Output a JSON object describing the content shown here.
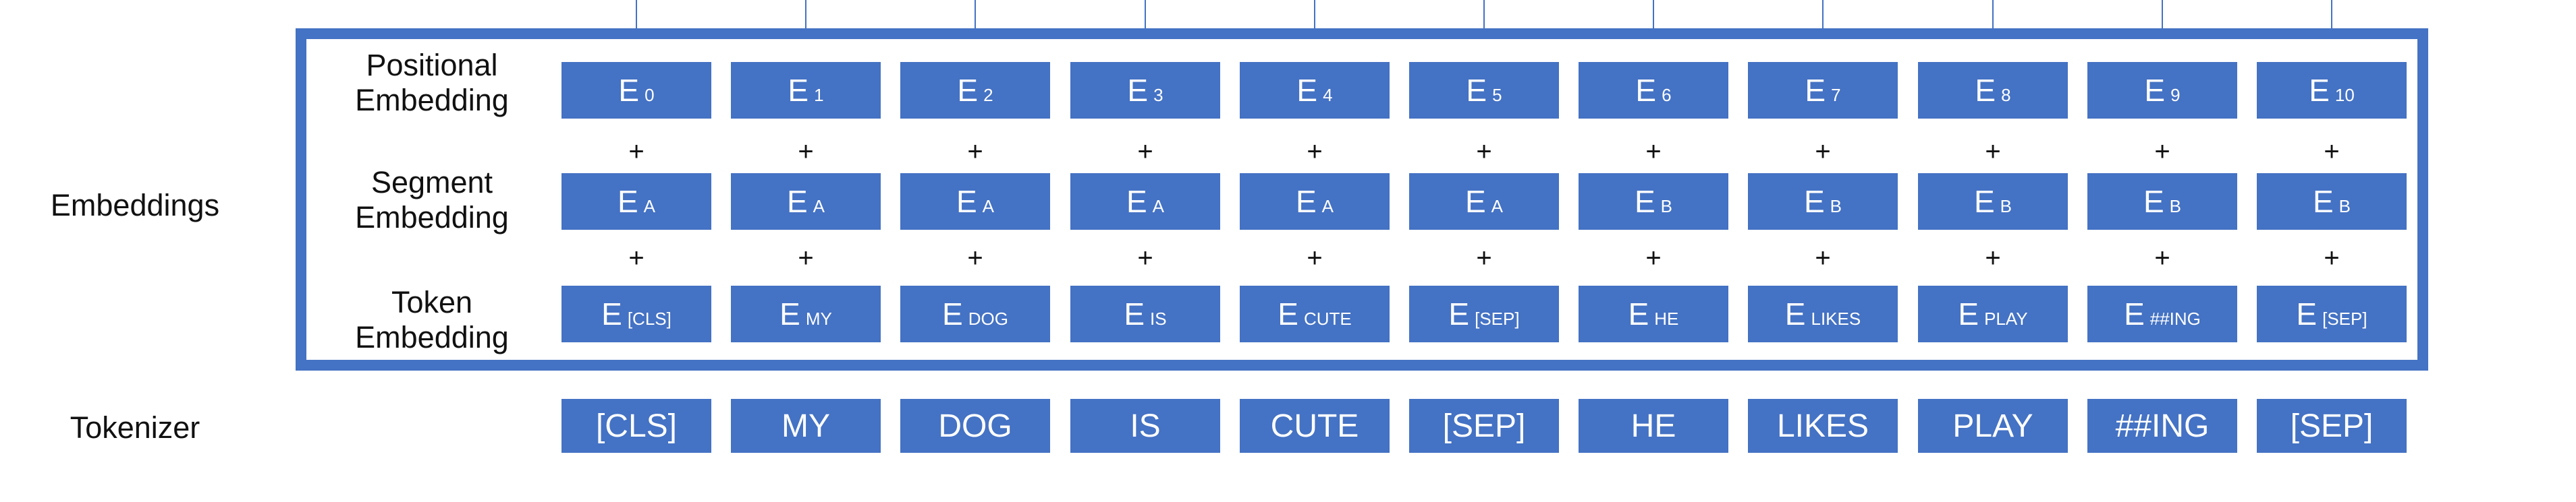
{
  "labels": {
    "embeddings": "Embeddings",
    "tokenizer": "Tokenizer",
    "positional": [
      "Positional",
      "Embedding"
    ],
    "segment": [
      "Segment",
      "Embedding"
    ],
    "token": [
      "Token",
      "Embedding"
    ]
  },
  "plus_symbol": "+",
  "embedding_prefix": "E",
  "positional_subscripts": [
    "0",
    "1",
    "2",
    "3",
    "4",
    "5",
    "6",
    "7",
    "8",
    "9",
    "10"
  ],
  "segment_subscripts": [
    "A",
    "A",
    "A",
    "A",
    "A",
    "A",
    "B",
    "B",
    "B",
    "B",
    "B"
  ],
  "token_subscripts": [
    "[CLS]",
    "MY",
    "DOG",
    "IS",
    "CUTE",
    "[SEP]",
    "HE",
    "LIKES",
    "PLAY",
    "##ING",
    "[SEP]"
  ],
  "tokens": [
    "[CLS]",
    "MY",
    "DOG",
    "IS",
    "CUTE",
    "[SEP]",
    "HE",
    "LIKES",
    "PLAY",
    "##ING",
    "[SEP]"
  ],
  "colors": {
    "box": "#4472c4",
    "frame": "#4472c4",
    "text_on_box": "#ffffff"
  }
}
